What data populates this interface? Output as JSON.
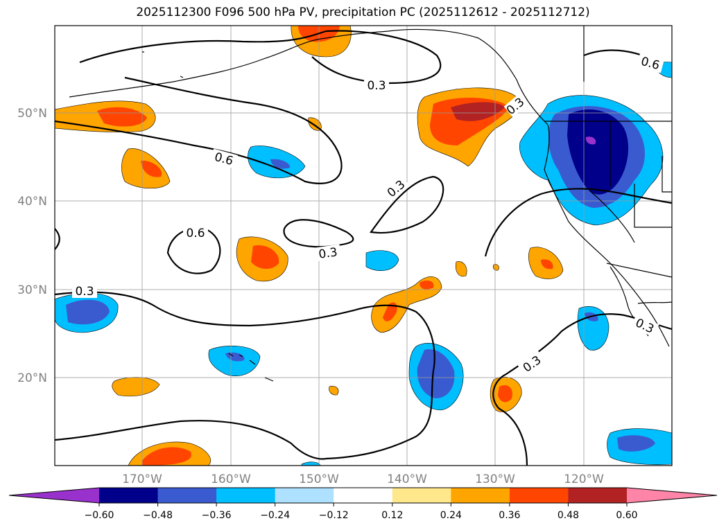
{
  "title": "2025112300 F096 500 hPa PV, precipitation PC (2025112612 - 2025112712)",
  "lon_labels": [
    "170°W",
    "160°W",
    "150°W",
    "140°W",
    "130°W",
    "120°W"
  ],
  "lat_labels": [
    "50°N",
    "40°N",
    "30°N",
    "20°N"
  ],
  "contour_labels": [
    "0.3",
    "0.6",
    "0.3",
    "0.6",
    "0.3",
    "0.3",
    "0.3",
    "0.3",
    "0.6",
    "0.3"
  ],
  "colorbar": {
    "ticks": [
      "−0.60",
      "−0.48",
      "−0.36",
      "−0.24",
      "−0.12",
      "0.12",
      "0.24",
      "0.36",
      "0.48",
      "0.60"
    ],
    "colors": [
      "#9932CC",
      "#00008B",
      "#3A5BD0",
      "#00BFFF",
      "#ADE1FF",
      "#FFFFFF",
      "#FFE88C",
      "#FFA500",
      "#FF4500",
      "#B22222",
      "#FF85A8"
    ]
  }
}
